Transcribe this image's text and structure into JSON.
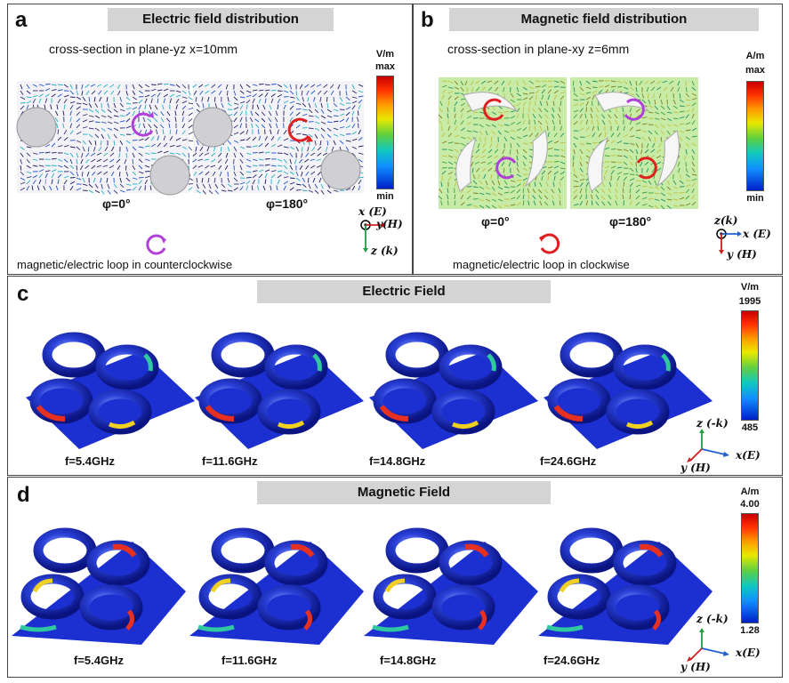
{
  "panel_a": {
    "label": "a",
    "title": "Electric field distribution",
    "subtitle": "cross-section in plane-yz  x=10mm",
    "phase_left": "φ=0°",
    "phase_right": "φ=180°",
    "colorbar": {
      "unit": "V/m",
      "max": "max",
      "min": "min"
    },
    "axes": {
      "x": "x (E)",
      "y": "y(H)",
      "z": "z (k)"
    },
    "caption": "magnetic/electric loop in counterclockwise",
    "loop_color": "#b040d8"
  },
  "panel_b": {
    "label": "b",
    "title": "Magnetic field distribution",
    "subtitle": "cross-section in plane-xy  z=6mm",
    "phase_left": "φ=0°",
    "phase_right": "φ=180°",
    "colorbar": {
      "unit": "A/m",
      "max": "max",
      "min": "min"
    },
    "axes": {
      "z": "z(k)",
      "x": "x (E)",
      "y": "y  (H)"
    },
    "caption": "magnetic/electric loop in clockwise",
    "loop_color": "#e02020"
  },
  "panel_c": {
    "label": "c",
    "title": "Electric Field",
    "colorbar": {
      "unit": "V/m",
      "max": "1995",
      "min": "485"
    },
    "frequencies": [
      "f=5.4GHz",
      "f=11.6GHz",
      "f=14.8GHz",
      "f=24.6GHz"
    ],
    "axes": {
      "z": "z (-k)",
      "x": "x(E)",
      "y": "y (H)"
    }
  },
  "panel_d": {
    "label": "d",
    "title": "Magnetic Field",
    "colorbar": {
      "unit": "A/m",
      "max": "4.00",
      "min": "1.28"
    },
    "frequencies": [
      "f=5.4GHz",
      "f=11.6GHz",
      "f=14.8GHz",
      "f=24.6GHz"
    ],
    "axes": {
      "z": "z (-k)",
      "x": "x(E)",
      "y": "y (H)"
    }
  },
  "colors": {
    "plate": "#1c2fd0",
    "ring": "#2a40d8",
    "hot": "#e83020",
    "warm": "#f0d020",
    "cool": "#30c8a0"
  }
}
